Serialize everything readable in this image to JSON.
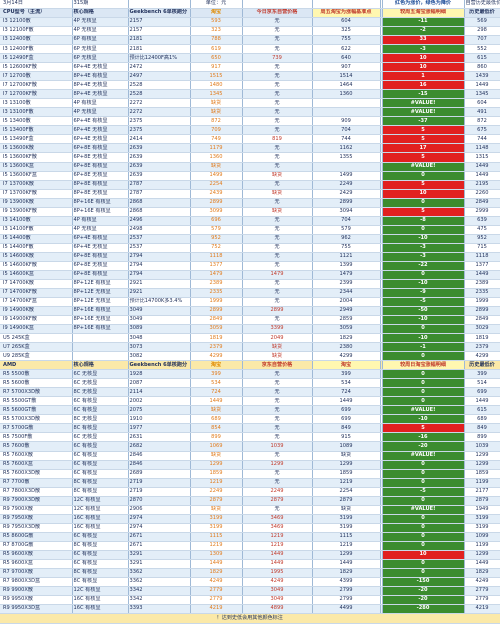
{
  "top": {
    "date": "3月14日",
    "title": "315期",
    "unit": "单位：元",
    "legend": "红色为涨价，绿色为降价",
    "history_note": "自营历史最低价"
  },
  "intel_header": [
    "CPU型号（主流）",
    "核心规格",
    "Geekbench 6单核跑分",
    "淘宝",
    "今日京东自营价格",
    "周五淘宝为涨幅基准点",
    "较周五淘宝涨幅明细",
    "历史最低价"
  ],
  "intel_rows": [
    [
      "I3 12100散",
      "4P 无核显",
      "2157",
      "593",
      "无",
      "604",
      "-11",
      "569"
    ],
    [
      "I3 12100F散",
      "4P 无核显",
      "2157",
      "323",
      "无",
      "325",
      "-2",
      "298"
    ],
    [
      "I3 12400散",
      "6P 有核显",
      "2181",
      "788",
      "无",
      "755",
      "33",
      "707"
    ],
    [
      "I3 12400F散",
      "6P 无核显",
      "2181",
      "619",
      "无",
      "622",
      "-3",
      "552"
    ],
    [
      "I5 12490F盒",
      "6P 无核显",
      "预计比12400F高1%",
      "650",
      "739",
      "640",
      "10",
      "615"
    ],
    [
      "I5 12600KF散",
      "6P+4E 无核显",
      "2472",
      "917",
      "无",
      "907",
      "10",
      "860"
    ],
    [
      "I7 12700散",
      "8P+4E 有核显",
      "2497",
      "1515",
      "无",
      "1514",
      "1",
      "1439"
    ],
    [
      "I7 12700KF散",
      "8P+4E 无核显",
      "2528",
      "1480",
      "无",
      "1464",
      "16",
      "1449"
    ],
    [
      "I7 12700KF散",
      "8P+4E 无核显",
      "2528",
      "1345",
      "无",
      "1360",
      "-15",
      "1345"
    ],
    [
      "I3 13100散",
      "4P 有核显",
      "2272",
      "缺货",
      "无",
      "",
      "#VALUE!",
      "604"
    ],
    [
      "I3 13100F散",
      "4P 无核显",
      "2272",
      "缺货",
      "无",
      "",
      "#VALUE!",
      "491"
    ],
    [
      "I5 13400散",
      "6P+4E 有核显",
      "2375",
      "872",
      "无",
      "909",
      "-37",
      "872"
    ],
    [
      "I5 13400F散",
      "6P+4E 无核显",
      "2375",
      "709",
      "无",
      "704",
      "5",
      "675"
    ],
    [
      "I5 13490F盒",
      "6P+4E 无核显",
      "2414",
      "749",
      "819",
      "744",
      "5",
      "744"
    ],
    [
      "I5 13600K散",
      "6P+8E 有核显",
      "2639",
      "1179",
      "无",
      "1162",
      "17",
      "1148"
    ],
    [
      "I5 13600KF散",
      "6P+8E 无核显",
      "2639",
      "1360",
      "无",
      "1355",
      "5",
      "1315"
    ],
    [
      "I5 13600K盒",
      "6P+8E 有核显",
      "2639",
      "缺货",
      "无",
      "",
      "#VALUE!",
      "1449"
    ],
    [
      "I5 13600KF盒",
      "6P+8E 无核显",
      "2639",
      "1499",
      "缺货",
      "1499",
      "0",
      "1449"
    ],
    [
      "I7 13700K散",
      "8P+8E 有核显",
      "2787",
      "2254",
      "无",
      "2249",
      "5",
      "2195"
    ],
    [
      "I7 13700KF散",
      "8P+8E 无核显",
      "2787",
      "2439",
      "缺货",
      "2429",
      "10",
      "2260"
    ],
    [
      "I9 13900K散",
      "8P+16E 有核显",
      "2868",
      "2899",
      "无",
      "2899",
      "0",
      "2849"
    ],
    [
      "I9 13900KF散",
      "8P+16E 有核显",
      "2868",
      "3099",
      "缺货",
      "3094",
      "5",
      "2999"
    ],
    [
      "I3 14100散",
      "4P 有核显",
      "2496",
      "696",
      "无",
      "704",
      "-8",
      "639"
    ],
    [
      "I3 14100F散",
      "4P 无核显",
      "2498",
      "579",
      "无",
      "579",
      "0",
      "475"
    ],
    [
      "I5 14400散",
      "6P+4E 有核显",
      "2537",
      "952",
      "无",
      "962",
      "-10",
      "952"
    ],
    [
      "I5 14400F散",
      "6P+4E 无核显",
      "2537",
      "752",
      "无",
      "755",
      "-3",
      "715"
    ],
    [
      "I5 14600K散",
      "6P+8E 有核显",
      "2794",
      "1118",
      "无",
      "1121",
      "-3",
      "1118"
    ],
    [
      "I5 14600KF散",
      "6P+8E 无核显",
      "2794",
      "1377",
      "无",
      "1399",
      "-22",
      "1377"
    ],
    [
      "I5 14600K盒",
      "6P+8E 有核显",
      "2794",
      "1479",
      "1479",
      "1479",
      "0",
      "1449"
    ],
    [
      "I7 14700K散",
      "8P+12E 有核显",
      "2921",
      "2389",
      "无",
      "2399",
      "-10",
      "2389"
    ],
    [
      "I7 14700KF散",
      "8P+12E 无核显",
      "2921",
      "2335",
      "无",
      "2344",
      "-9",
      "2335"
    ],
    [
      "I7 14700KF盒",
      "8P+12E 无核显",
      "预计比14700K多3.4%",
      "1999",
      "无",
      "2004",
      "-5",
      "1999"
    ],
    [
      "I9 14900K散",
      "8P+16E 有核显",
      "3049",
      "2899",
      "2899",
      "2949",
      "-50",
      "2899"
    ],
    [
      "I9 14900KF散",
      "8P+16E 无核显",
      "3049",
      "2849",
      "无",
      "2859",
      "-10",
      "2849"
    ],
    [
      "I9 14900K盒",
      "8P+16E 有核显",
      "3089",
      "3059",
      "3399",
      "3059",
      "0",
      "3029"
    ],
    [
      "U5 245K盒",
      "",
      "3048",
      "1819",
      "2049",
      "1829",
      "-10",
      "1819"
    ],
    [
      "U7 265K盒",
      "",
      "3073",
      "2379",
      "缺货",
      "2380",
      "-1",
      "2379"
    ],
    [
      "U9 285K盒",
      "",
      "3082",
      "4299",
      "缺货",
      "4299",
      "0",
      "4299"
    ]
  ],
  "amd_header": [
    "AMD",
    "核心规格",
    "Geekbench 6单核跑分",
    "淘宝",
    "京东自营价格",
    "淘宝",
    "较周日淘宝涨幅明细",
    "历史最低价"
  ],
  "amd_rows": [
    [
      "R5 5500散",
      "6C 无核显",
      "1928",
      "399",
      "无",
      "399",
      "0",
      "399"
    ],
    [
      "R5 5600散",
      "6C 无核显",
      "2087",
      "534",
      "无",
      "534",
      "0",
      "514"
    ],
    [
      "R7 5700X3D散",
      "8C 无核显",
      "2114",
      "724",
      "无",
      "724",
      "0",
      "699"
    ],
    [
      "R5 5500GT散",
      "6C 有核显",
      "2002",
      "1449",
      "无",
      "1449",
      "0",
      "1449"
    ],
    [
      "R5 5600GT散",
      "6C 有核显",
      "2075",
      "缺货",
      "无",
      "699",
      "#VALUE!",
      "615"
    ],
    [
      "R5 5700X3D散",
      "8C 无核显",
      "1910",
      "689",
      "无",
      "699",
      "-10",
      "689"
    ],
    [
      "R7 5700G散",
      "8C 有核显",
      "1977",
      "854",
      "无",
      "849",
      "5",
      "849"
    ],
    [
      "R5 7500F散",
      "6C 无核显",
      "2631",
      "899",
      "无",
      "915",
      "-16",
      "899"
    ],
    [
      "R5 7600散",
      "6C 有核显",
      "2682",
      "1069",
      "1039",
      "1089",
      "-20",
      "1039"
    ],
    [
      "R5 7600X散",
      "6C 有核显",
      "2846",
      "缺货",
      "无",
      "缺货",
      "#VALUE!",
      "1299"
    ],
    [
      "R5 7600X盒",
      "6C 有核显",
      "2846",
      "1299",
      "1299",
      "1299",
      "0",
      "1299"
    ],
    [
      "R5 7600X3D散",
      "6C 有核显",
      "2689",
      "1859",
      "无",
      "1859",
      "0",
      "1859"
    ],
    [
      "R7 7700散",
      "8C 有核显",
      "2719",
      "1219",
      "无",
      "1219",
      "0",
      "1199"
    ],
    [
      "R7 7800X3D散",
      "8C 有核显",
      "2719",
      "2249",
      "2249",
      "2254",
      "-5",
      "2177"
    ],
    [
      "R9 7900X3D散",
      "12C 有核显",
      "2870",
      "2879",
      "2879",
      "2879",
      "0",
      "2879"
    ],
    [
      "R9 7900X散",
      "12C 有核显",
      "2906",
      "缺货",
      "无",
      "缺货",
      "#VALUE!",
      "1949"
    ],
    [
      "R9 7950X散",
      "16C 有核显",
      "2974",
      "3199",
      "3469",
      "3199",
      "0",
      "3199"
    ],
    [
      "R9 7950X3D散",
      "16C 有核显",
      "2974",
      "3199",
      "3469",
      "3199",
      "0",
      "3199"
    ],
    [
      "R5 8600G散",
      "6C 有核显",
      "2671",
      "1115",
      "1219",
      "1115",
      "0",
      "1099"
    ],
    [
      "R7 8700G散",
      "8C 有核显",
      "2671",
      "1219",
      "1219",
      "1219",
      "0",
      "1199"
    ],
    [
      "R5 9600X散",
      "6C 有核显",
      "3291",
      "1309",
      "1449",
      "1299",
      "10",
      "1299"
    ],
    [
      "R5 9600X盒",
      "6C 有核显",
      "3291",
      "1449",
      "1449",
      "1449",
      "0",
      "1449"
    ],
    [
      "R7 9700X散",
      "8C 有核显",
      "3362",
      "1829",
      "1995",
      "1829",
      "0",
      "1829"
    ],
    [
      "R7 9800X3D盒",
      "8C 有核显",
      "3362",
      "4249",
      "4249",
      "4399",
      "-150",
      "4249"
    ],
    [
      "R9 9900X散",
      "12C 有核显",
      "3342",
      "2779",
      "3049",
      "2799",
      "-20",
      "2779"
    ],
    [
      "R9 9950X散",
      "16C 有核显",
      "3342",
      "2779",
      "3049",
      "2799",
      "-20",
      "2779"
    ],
    [
      "R9 9950X3D盒",
      "16C 有核显",
      "3393",
      "4219",
      "4899",
      "4499",
      "-280",
      "4219"
    ]
  ],
  "footer": "！达到史低会用其他颜色标注"
}
